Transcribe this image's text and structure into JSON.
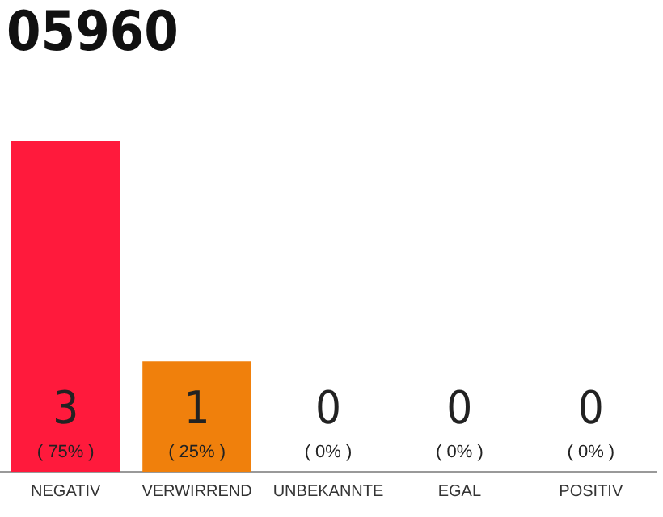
{
  "chart_data": {
    "type": "bar",
    "title": "05960",
    "categories": [
      "NEGATIV",
      "VERWIRREND",
      "UNBEKANNTE",
      "EGAL",
      "POSITIV"
    ],
    "values": [
      3,
      1,
      0,
      0,
      0
    ],
    "colors": [
      "#ff1a3c",
      "#f0800c",
      "#f0800c",
      "#f0800c",
      "#f0800c"
    ],
    "value_labels": [
      "3\n( 75% )",
      "1\n( 25% )",
      "0\n( 0% )",
      "0\n( 0% )",
      "0\n( 0% )"
    ],
    "ylim": [
      0,
      3
    ],
    "tick_labels": "x",
    "grid": false,
    "legend": false
  }
}
